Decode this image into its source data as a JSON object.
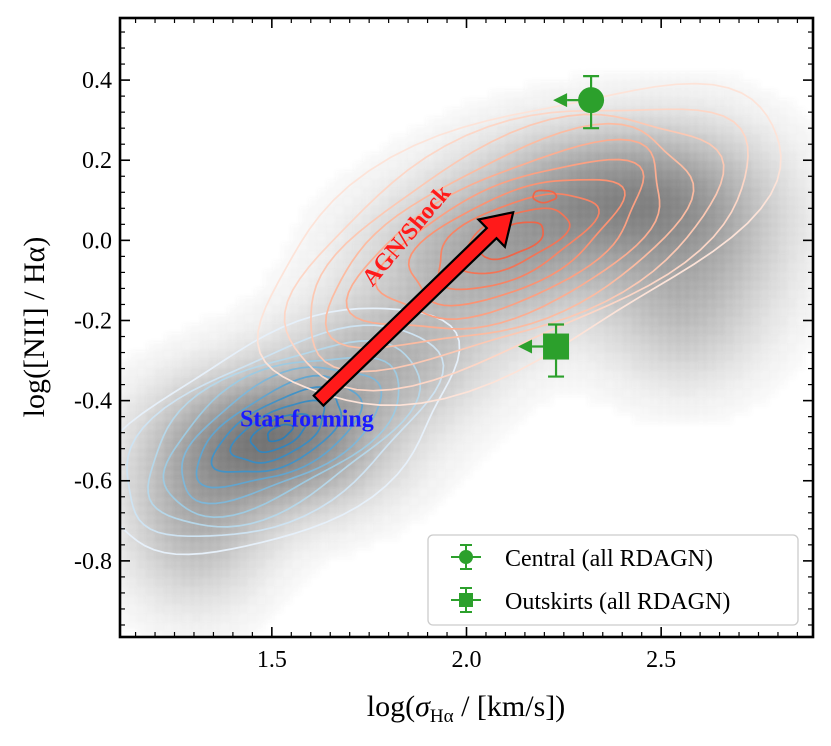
{
  "chart_data": {
    "type": "scatter",
    "title": "",
    "xlabel_prefix": "log(",
    "xlabel_sigma": "σ",
    "xlabel_subscript": "Hα",
    "xlabel_suffix": " / [km/s])",
    "ylabel": "log([NII] / Hα)",
    "xlim": [
      1.11,
      2.89
    ],
    "ylim": [
      -0.99,
      0.555
    ],
    "xticks": [
      1.5,
      2.0,
      2.5
    ],
    "xtick_labels": [
      "1.5",
      "2.0",
      "2.5"
    ],
    "yticks": [
      -0.8,
      -0.6,
      -0.4,
      -0.2,
      0.0,
      0.2,
      0.4
    ],
    "ytick_labels": [
      "-0.8",
      "-0.6",
      "-0.4",
      "-0.2",
      "0.0",
      "0.2",
      "0.4"
    ],
    "background_density": {
      "description": "grey 2D density of the full galaxy sample",
      "color": "#555555",
      "blobs": [
        {
          "x": 1.5,
          "y": -0.5,
          "sx": 0.2,
          "sy": 0.12,
          "w": 0.95
        },
        {
          "x": 1.3,
          "y": -0.72,
          "sx": 0.13,
          "sy": 0.14,
          "w": 0.45
        },
        {
          "x": 1.8,
          "y": -0.3,
          "sx": 0.18,
          "sy": 0.11,
          "w": 0.45
        },
        {
          "x": 2.05,
          "y": -0.05,
          "sx": 0.22,
          "sy": 0.13,
          "w": 0.55
        },
        {
          "x": 2.35,
          "y": 0.12,
          "sx": 0.22,
          "sy": 0.12,
          "w": 0.65
        },
        {
          "x": 2.6,
          "y": 0.02,
          "sx": 0.17,
          "sy": 0.17,
          "w": 0.45
        },
        {
          "x": 2.55,
          "y": -0.22,
          "sx": 0.14,
          "sy": 0.12,
          "w": 0.25
        }
      ]
    },
    "contours": [
      {
        "name": "Star-forming",
        "colors": [
          "#e6f0fa",
          "#9ecae1",
          "#4292c6",
          "#2c7fb8"
        ],
        "center": [
          1.52,
          -0.48
        ],
        "angle_deg": 27,
        "levels": [
          {
            "a": 0.5,
            "b": 0.24
          },
          {
            "a": 0.44,
            "b": 0.2
          },
          {
            "a": 0.38,
            "b": 0.175
          },
          {
            "a": 0.33,
            "b": 0.15
          },
          {
            "a": 0.28,
            "b": 0.125
          },
          {
            "a": 0.23,
            "b": 0.1
          },
          {
            "a": 0.18,
            "b": 0.078
          },
          {
            "a": 0.13,
            "b": 0.056
          },
          {
            "a": 0.08,
            "b": 0.035
          },
          {
            "a": 0.035,
            "b": 0.016
          }
        ]
      },
      {
        "name": "AGN/Shock",
        "colors": [
          "#fde3d8",
          "#fcbba1",
          "#fc9272",
          "#ef6548"
        ],
        "center": [
          2.12,
          -0.0
        ],
        "angle_deg": 24,
        "levels": [
          {
            "a": 0.72,
            "b": 0.3
          },
          {
            "a": 0.64,
            "b": 0.265
          },
          {
            "a": 0.57,
            "b": 0.235
          },
          {
            "a": 0.5,
            "b": 0.205
          },
          {
            "a": 0.43,
            "b": 0.175
          },
          {
            "a": 0.36,
            "b": 0.145
          },
          {
            "a": 0.29,
            "b": 0.117
          },
          {
            "a": 0.22,
            "b": 0.089
          },
          {
            "a": 0.15,
            "b": 0.061
          },
          {
            "a": 0.085,
            "b": 0.035
          }
        ],
        "peak": {
          "x": 2.2,
          "y": 0.11,
          "a": 0.03,
          "b": 0.015
        }
      }
    ],
    "arrow": {
      "from": [
        1.62,
        -0.4
      ],
      "to": [
        2.12,
        0.07
      ],
      "color": "#ff1a1a",
      "edge": "#000000"
    },
    "annotations": [
      {
        "text": "AGN/Shock",
        "x": 1.86,
        "y": 0.0,
        "angle_deg": -50,
        "color": "#ff1a1a"
      },
      {
        "text": "Star-forming",
        "x": 1.59,
        "y": -0.465,
        "angle_deg": 0,
        "color": "#1a1aff"
      }
    ],
    "series": [
      {
        "name": "Central (all RDAGN)",
        "marker": "circle",
        "color": "#2ca02c",
        "x": 2.32,
        "y": 0.35,
        "yerr_low": 0.07,
        "yerr_high": 0.06,
        "upper_limit_x": true
      },
      {
        "name": "Outskirts (all RDAGN)",
        "marker": "square",
        "color": "#2ca02c",
        "x": 2.23,
        "y": -0.265,
        "yerr_low": 0.075,
        "yerr_high": 0.055,
        "upper_limit_x": true
      }
    ],
    "legend": {
      "location": "lower-right",
      "entries": [
        "Central (all RDAGN)",
        "Outskirts (all RDAGN)"
      ]
    }
  }
}
